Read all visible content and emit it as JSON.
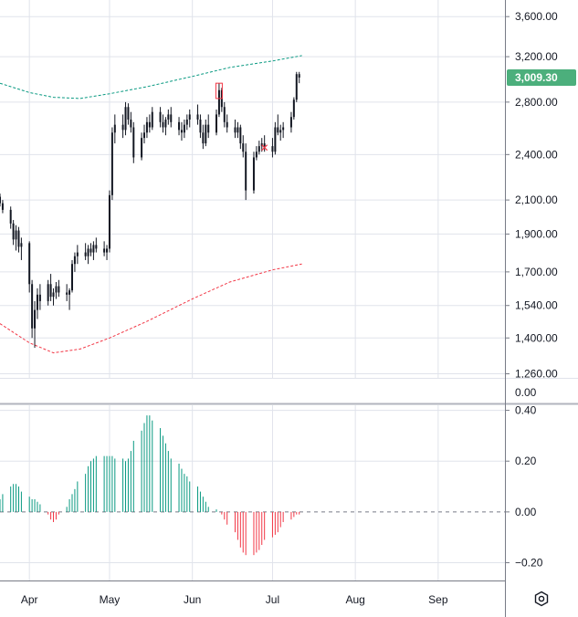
{
  "chart_data": [
    {
      "type": "candlestick",
      "title": "",
      "price_axis": {
        "scale": "log",
        "ticks": [
          3600,
          3200,
          2800,
          2400,
          2100,
          1900,
          1700,
          1540,
          1400,
          1260
        ],
        "tick_labels": [
          "3,600.00",
          "3,200.00",
          "2,800.00",
          "2,400.00",
          "2,100.00",
          "1,900.00",
          "1,700.00",
          "1,540.00",
          "1,400.00",
          "1,260.00"
        ],
        "range": [
          1245,
          3780
        ]
      },
      "time_axis": {
        "labels": [
          "Apr",
          "May",
          "Jun",
          "Jul",
          "Aug",
          "Sep"
        ],
        "label_dates": [
          "2024-04-01",
          "2024-05-01",
          "2024-06-01",
          "2024-07-01",
          "2024-08-01",
          "2024-09-01"
        ],
        "range": [
          "2024-03-21",
          "2024-09-26"
        ]
      },
      "last_price": {
        "value": 3009.3,
        "label": "3,009.30",
        "color": "#4caf7c"
      },
      "upper_band": {
        "color": "#089981",
        "style": "dashed",
        "points": [
          [
            "2024-03-21",
            2960
          ],
          [
            "2024-04-01",
            2880
          ],
          [
            "2024-04-10",
            2840
          ],
          [
            "2024-04-20",
            2830
          ],
          [
            "2024-05-01",
            2870
          ],
          [
            "2024-05-15",
            2930
          ],
          [
            "2024-06-01",
            3020
          ],
          [
            "2024-06-15",
            3100
          ],
          [
            "2024-07-01",
            3160
          ],
          [
            "2024-07-12",
            3210
          ]
        ]
      },
      "lower_band": {
        "color": "#f23645",
        "style": "dashed",
        "points": [
          [
            "2024-03-21",
            1460
          ],
          [
            "2024-04-01",
            1380
          ],
          [
            "2024-04-10",
            1340
          ],
          [
            "2024-04-20",
            1355
          ],
          [
            "2024-05-01",
            1400
          ],
          [
            "2024-05-15",
            1470
          ],
          [
            "2024-06-01",
            1570
          ],
          [
            "2024-06-15",
            1650
          ],
          [
            "2024-07-01",
            1710
          ],
          [
            "2024-07-12",
            1740
          ]
        ]
      },
      "ohlc": [
        [
          "2024-03-21",
          2120,
          2140,
          2060,
          2080
        ],
        [
          "2024-03-22",
          2080,
          2100,
          2020,
          2040
        ],
        [
          "2024-03-25",
          2040,
          2060,
          1930,
          1960
        ],
        [
          "2024-03-26",
          1960,
          1980,
          1840,
          1870
        ],
        [
          "2024-03-27",
          1870,
          1950,
          1810,
          1920
        ],
        [
          "2024-03-28",
          1920,
          1940,
          1800,
          1830
        ],
        [
          "2024-03-29",
          1830,
          1880,
          1760,
          1850
        ],
        [
          "2024-04-01",
          1850,
          1860,
          1600,
          1640
        ],
        [
          "2024-04-02",
          1640,
          1660,
          1400,
          1440
        ],
        [
          "2024-04-03",
          1440,
          1560,
          1360,
          1520
        ],
        [
          "2024-04-04",
          1520,
          1620,
          1480,
          1590
        ],
        [
          "2024-04-05",
          1590,
          1640,
          1520,
          1560
        ],
        [
          "2024-04-08",
          1560,
          1660,
          1540,
          1640
        ],
        [
          "2024-04-09",
          1640,
          1690,
          1560,
          1580
        ],
        [
          "2024-04-10",
          1580,
          1620,
          1540,
          1600
        ],
        [
          "2024-04-11",
          1600,
          1650,
          1570,
          1630
        ],
        [
          "2024-04-12",
          1630,
          1660,
          1580,
          1600
        ],
        [
          "2024-04-15",
          1600,
          1640,
          1560,
          1590
        ],
        [
          "2024-04-16",
          1590,
          1620,
          1520,
          1610
        ],
        [
          "2024-04-17",
          1610,
          1760,
          1600,
          1740
        ],
        [
          "2024-04-18",
          1740,
          1800,
          1700,
          1780
        ],
        [
          "2024-04-19",
          1780,
          1840,
          1740,
          1800
        ],
        [
          "2024-04-22",
          1800,
          1850,
          1760,
          1780
        ],
        [
          "2024-04-23",
          1780,
          1840,
          1740,
          1820
        ],
        [
          "2024-04-24",
          1820,
          1850,
          1780,
          1800
        ],
        [
          "2024-04-25",
          1800,
          1860,
          1760,
          1840
        ],
        [
          "2024-04-26",
          1840,
          1880,
          1800,
          1820
        ],
        [
          "2024-04-29",
          1820,
          1860,
          1780,
          1800
        ],
        [
          "2024-04-30",
          1800,
          1840,
          1760,
          1820
        ],
        [
          "2024-05-01",
          1820,
          2160,
          1800,
          2130
        ],
        [
          "2024-05-02",
          2130,
          2600,
          2100,
          2560
        ],
        [
          "2024-05-03",
          2560,
          2700,
          2480,
          2620
        ],
        [
          "2024-05-06",
          2620,
          2700,
          2520,
          2580
        ],
        [
          "2024-05-07",
          2580,
          2800,
          2540,
          2760
        ],
        [
          "2024-05-08",
          2760,
          2790,
          2620,
          2660
        ],
        [
          "2024-05-09",
          2660,
          2720,
          2560,
          2600
        ],
        [
          "2024-05-10",
          2600,
          2640,
          2340,
          2380
        ],
        [
          "2024-05-13",
          2380,
          2560,
          2360,
          2520
        ],
        [
          "2024-05-14",
          2520,
          2620,
          2480,
          2560
        ],
        [
          "2024-05-15",
          2560,
          2680,
          2520,
          2640
        ],
        [
          "2024-05-16",
          2640,
          2700,
          2560,
          2600
        ],
        [
          "2024-05-17",
          2600,
          2760,
          2580,
          2720
        ],
        [
          "2024-05-20",
          2720,
          2760,
          2600,
          2640
        ],
        [
          "2024-05-21",
          2640,
          2700,
          2560,
          2600
        ],
        [
          "2024-05-22",
          2600,
          2680,
          2540,
          2660
        ],
        [
          "2024-05-23",
          2660,
          2740,
          2620,
          2700
        ],
        [
          "2024-05-24",
          2700,
          2760,
          2600,
          2640
        ],
        [
          "2024-05-27",
          2640,
          2680,
          2540,
          2580
        ],
        [
          "2024-05-28",
          2580,
          2640,
          2500,
          2560
        ],
        [
          "2024-05-29",
          2560,
          2660,
          2520,
          2620
        ],
        [
          "2024-05-30",
          2620,
          2700,
          2580,
          2660
        ],
        [
          "2024-05-31",
          2660,
          2740,
          2600,
          2700
        ],
        [
          "2024-06-03",
          2700,
          2780,
          2620,
          2660
        ],
        [
          "2024-06-04",
          2660,
          2700,
          2520,
          2560
        ],
        [
          "2024-06-05",
          2560,
          2620,
          2440,
          2480
        ],
        [
          "2024-06-06",
          2480,
          2660,
          2460,
          2620
        ],
        [
          "2024-06-07",
          2620,
          2700,
          2520,
          2560
        ],
        [
          "2024-06-10",
          2560,
          2740,
          2540,
          2700
        ],
        [
          "2024-06-11",
          2700,
          2960,
          2680,
          2900
        ],
        [
          "2024-06-12",
          2900,
          2920,
          2720,
          2760
        ],
        [
          "2024-06-13",
          2760,
          2800,
          2600,
          2640
        ],
        [
          "2024-06-14",
          2640,
          2700,
          2560,
          2600
        ],
        [
          "2024-06-17",
          2600,
          2660,
          2520,
          2560
        ],
        [
          "2024-06-18",
          2560,
          2640,
          2520,
          2600
        ],
        [
          "2024-06-19",
          2600,
          2620,
          2440,
          2480
        ],
        [
          "2024-06-20",
          2480,
          2540,
          2380,
          2420
        ],
        [
          "2024-06-21",
          2420,
          2480,
          2100,
          2160
        ],
        [
          "2024-06-24",
          2160,
          2420,
          2140,
          2380
        ],
        [
          "2024-06-25",
          2380,
          2460,
          2360,
          2420
        ],
        [
          "2024-06-26",
          2420,
          2500,
          2400,
          2460
        ],
        [
          "2024-06-27",
          2460,
          2520,
          2420,
          2480
        ],
        [
          "2024-06-28",
          2480,
          2540,
          2420,
          2460
        ],
        [
          "2024-07-01",
          2460,
          2520,
          2380,
          2420
        ],
        [
          "2024-07-02",
          2420,
          2640,
          2400,
          2600
        ],
        [
          "2024-07-03",
          2600,
          2700,
          2540,
          2560
        ],
        [
          "2024-07-04",
          2560,
          2620,
          2500,
          2580
        ],
        [
          "2024-07-05",
          2580,
          2640,
          2520,
          2600
        ],
        [
          "2024-07-08",
          2600,
          2720,
          2560,
          2680
        ],
        [
          "2024-07-09",
          2680,
          2840,
          2660,
          2820
        ],
        [
          "2024-07-10",
          2820,
          3060,
          2800,
          3040
        ],
        [
          "2024-07-11",
          3040,
          3060,
          2960,
          3009.3
        ]
      ],
      "markers": [
        {
          "shape": "square",
          "date": "2024-06-11",
          "high": 2960,
          "low": 2830,
          "color": "#f23645"
        },
        {
          "shape": "x",
          "date": "2024-06-28",
          "price": 2450,
          "color": "#f23645"
        }
      ]
    },
    {
      "type": "histogram",
      "title": "",
      "y_ticks": [
        0.4,
        0.2,
        0.0,
        -0.2
      ],
      "y_tick_labels": [
        "0.40",
        "0.20",
        "0.00",
        "−0.20"
      ],
      "ylim": [
        -0.27,
        0.42
      ],
      "zero_line": {
        "value": 0,
        "style": "dashed",
        "color": "#787b86"
      },
      "top_label": "0.00",
      "positive_color": "#089981",
      "negative_color": "#f23645",
      "points": [
        [
          "2024-03-21",
          0.05
        ],
        [
          "2024-03-22",
          0.07
        ],
        [
          "2024-03-25",
          0.1
        ],
        [
          "2024-03-26",
          0.11
        ],
        [
          "2024-03-27",
          0.11
        ],
        [
          "2024-03-28",
          0.1
        ],
        [
          "2024-03-29",
          0.08
        ],
        [
          "2024-04-01",
          0.06
        ],
        [
          "2024-04-02",
          0.05
        ],
        [
          "2024-04-03",
          0.05
        ],
        [
          "2024-04-04",
          0.04
        ],
        [
          "2024-04-05",
          0.03
        ],
        [
          "2024-04-08",
          -0.01
        ],
        [
          "2024-04-09",
          -0.03
        ],
        [
          "2024-04-10",
          -0.04
        ],
        [
          "2024-04-11",
          -0.03
        ],
        [
          "2024-04-12",
          -0.01
        ],
        [
          "2024-04-15",
          0.02
        ],
        [
          "2024-04-16",
          0.05
        ],
        [
          "2024-04-17",
          0.07
        ],
        [
          "2024-04-18",
          0.09
        ],
        [
          "2024-04-19",
          0.12
        ],
        [
          "2024-04-22",
          0.15
        ],
        [
          "2024-04-23",
          0.18
        ],
        [
          "2024-04-24",
          0.2
        ],
        [
          "2024-04-25",
          0.21
        ],
        [
          "2024-04-26",
          0.22
        ],
        [
          "2024-04-29",
          0.22
        ],
        [
          "2024-04-30",
          0.22
        ],
        [
          "2024-05-01",
          0.22
        ],
        [
          "2024-05-02",
          0.22
        ],
        [
          "2024-05-03",
          0.21
        ],
        [
          "2024-05-06",
          0.21
        ],
        [
          "2024-05-07",
          0.2
        ],
        [
          "2024-05-08",
          0.21
        ],
        [
          "2024-05-09",
          0.24
        ],
        [
          "2024-05-10",
          0.28
        ],
        [
          "2024-05-13",
          0.32
        ],
        [
          "2024-05-14",
          0.35
        ],
        [
          "2024-05-15",
          0.38
        ],
        [
          "2024-05-16",
          0.38
        ],
        [
          "2024-05-17",
          0.36
        ],
        [
          "2024-05-20",
          0.33
        ],
        [
          "2024-05-21",
          0.3
        ],
        [
          "2024-05-22",
          0.27
        ],
        [
          "2024-05-23",
          0.24
        ],
        [
          "2024-05-24",
          0.21
        ],
        [
          "2024-05-27",
          0.19
        ],
        [
          "2024-05-28",
          0.17
        ],
        [
          "2024-05-29",
          0.15
        ],
        [
          "2024-05-30",
          0.14
        ],
        [
          "2024-05-31",
          0.12
        ],
        [
          "2024-06-03",
          0.1
        ],
        [
          "2024-06-04",
          0.08
        ],
        [
          "2024-06-05",
          0.06
        ],
        [
          "2024-06-06",
          0.04
        ],
        [
          "2024-06-07",
          0.02
        ],
        [
          "2024-06-10",
          0.01
        ],
        [
          "2024-06-11",
          0.0
        ],
        [
          "2024-06-12",
          -0.01
        ],
        [
          "2024-06-13",
          -0.03
        ],
        [
          "2024-06-14",
          -0.05
        ],
        [
          "2024-06-17",
          -0.08
        ],
        [
          "2024-06-18",
          -0.11
        ],
        [
          "2024-06-19",
          -0.14
        ],
        [
          "2024-06-20",
          -0.16
        ],
        [
          "2024-06-21",
          -0.17
        ],
        [
          "2024-06-24",
          -0.17
        ],
        [
          "2024-06-25",
          -0.16
        ],
        [
          "2024-06-26",
          -0.15
        ],
        [
          "2024-06-27",
          -0.13
        ],
        [
          "2024-06-28",
          -0.11
        ],
        [
          "2024-07-01",
          -0.1
        ],
        [
          "2024-07-02",
          -0.09
        ],
        [
          "2024-07-03",
          -0.08
        ],
        [
          "2024-07-04",
          -0.06
        ],
        [
          "2024-07-05",
          -0.04
        ],
        [
          "2024-07-08",
          -0.03
        ],
        [
          "2024-07-09",
          -0.02
        ],
        [
          "2024-07-10",
          -0.01
        ],
        [
          "2024-07-11",
          -0.01
        ]
      ]
    }
  ],
  "ui": {
    "settings_icon": "settings-hexagon-icon",
    "grid_color": "#e0e3eb",
    "border_color": "#787b86"
  }
}
